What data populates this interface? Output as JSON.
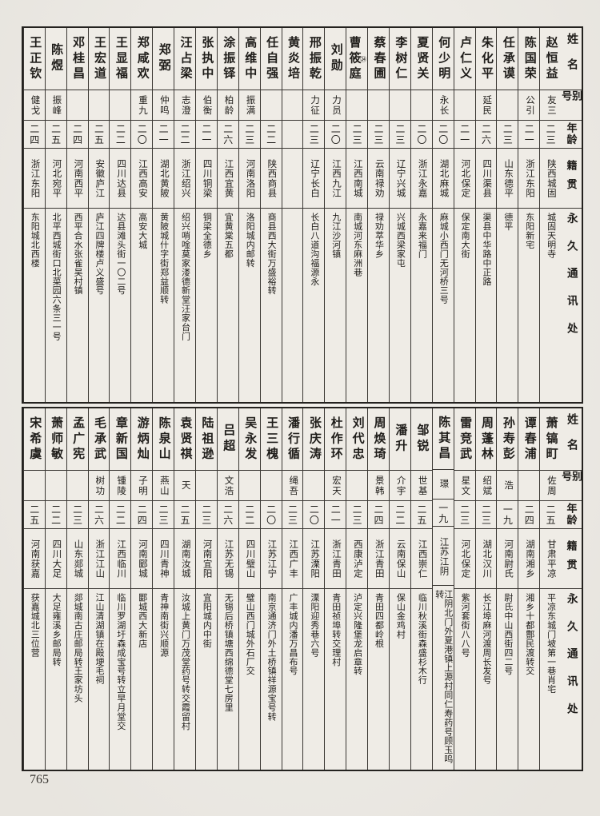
{
  "page": {
    "number": "765"
  },
  "headers": {
    "name": "姓名",
    "alias": "别号",
    "age": "年龄",
    "native": "籍贯",
    "address": "永久通讯处"
  },
  "tables": [
    {
      "entries": [
        {
          "name": "赵恒益",
          "note": "",
          "alias": "友三",
          "age": "二三",
          "native": "陕西城固",
          "address": "城固天明寺"
        },
        {
          "name": "陈国荣",
          "note": "",
          "alias": "公引",
          "age": "二一",
          "native": "浙江东阳",
          "address": "东阳新宅"
        },
        {
          "name": "任承谟",
          "note": "",
          "alias": "",
          "age": "二三",
          "native": "山东德平",
          "address": "德平"
        },
        {
          "name": "朱化平",
          "note": "",
          "alias": "延民",
          "age": "二六",
          "native": "四川渠县",
          "address": "渠县中华路中正路"
        },
        {
          "name": "卢仁义",
          "note": "",
          "alias": "",
          "age": "二一",
          "native": "河北保定",
          "address": "保定南大街"
        },
        {
          "name": "何少明",
          "note": "",
          "alias": "永长",
          "age": "二〇",
          "native": "湖北麻城",
          "address": "麻城小西门无河桥三号"
        },
        {
          "name": "夏贤关",
          "note": "",
          "alias": "",
          "age": "二〇",
          "native": "浙江永嘉",
          "address": "永嘉来福门"
        },
        {
          "name": "李树仁",
          "note": "",
          "alias": "",
          "age": "二三",
          "native": "辽宁兴城",
          "address": "兴城西梁家屯"
        },
        {
          "name": "蔡春圃",
          "note": "",
          "alias": "",
          "age": "二三",
          "native": "云南禄劝",
          "address": "禄劝萃华乡"
        },
        {
          "name": "曹筱庭",
          "note": "㉔",
          "alias": "",
          "age": "二三",
          "native": "江西南城",
          "address": "南城河东麻洲巷"
        },
        {
          "name": "刘勋",
          "note": "",
          "alias": "力员",
          "age": "二〇",
          "native": "江西九江",
          "address": "九江沙河镇"
        },
        {
          "name": "邢振乾",
          "note": "",
          "alias": "力征",
          "age": "二三",
          "native": "辽宁长白",
          "address": "长白八道沟福源永"
        },
        {
          "name": "黄炎培",
          "note": "",
          "alias": "",
          "age": "",
          "native": "",
          "address": ""
        },
        {
          "name": "任自强",
          "note": "",
          "alias": "",
          "age": "二二",
          "native": "陕西商县",
          "address": "商县西大街万盛裕转"
        },
        {
          "name": "高维中",
          "note": "",
          "alias": "振满",
          "age": "二三",
          "native": "河南洛阳",
          "address": "洛阳城内邮转"
        },
        {
          "name": "涂振铎",
          "note": "",
          "alias": "柏龄",
          "age": "二六",
          "native": "江西宜黄",
          "address": "宜黄棠五都"
        },
        {
          "name": "张执中",
          "note": "",
          "alias": "伯衡",
          "age": "二一",
          "native": "四川铜梁",
          "address": "铜梁全德乡"
        },
        {
          "name": "汪占梁",
          "note": "",
          "alias": "志澄",
          "age": "二二",
          "native": "浙江绍兴",
          "address": "绍兴哨唫莫家溇德新堂汪家台门"
        },
        {
          "name": "郑弼",
          "note": "",
          "alias": "仲鸣",
          "age": "二一",
          "native": "湖北黄陂",
          "address": "黄陂城什字街郑益顺转"
        },
        {
          "name": "郑咸欢",
          "note": "",
          "alias": "重九",
          "age": "二〇",
          "native": "江西高安",
          "address": "高安大城"
        },
        {
          "name": "王显福",
          "note": "",
          "alias": "",
          "age": "二二",
          "native": "四川达县",
          "address": "达县滩头街一〇二号"
        },
        {
          "name": "王宏道",
          "note": "",
          "alias": "",
          "age": "二五",
          "native": "安徽庐江",
          "address": "庐江四牌楼卢义盛号"
        },
        {
          "name": "邓桂昌",
          "note": "",
          "alias": "",
          "age": "二四",
          "native": "河南西平",
          "address": "西平合水张雀吴村镇"
        },
        {
          "name": "陈煜",
          "note": "",
          "alias": "振峰",
          "age": "二五",
          "native": "河北宛平",
          "address": "北平西城街口北菜园六条三一号"
        },
        {
          "name": "王正钦",
          "note": "",
          "alias": "健戈",
          "age": "二四",
          "native": "浙江东阳",
          "address": "东阳城北西楼"
        }
      ]
    },
    {
      "entries": [
        {
          "name": "萧镐町",
          "note": "",
          "alias": "佐周",
          "age": "二五",
          "native": "甘肃平凉",
          "address": "平凉东城门坡第一巷肖宅"
        },
        {
          "name": "谭春浦",
          "note": "",
          "alias": "",
          "age": "二四",
          "native": "湖南湘乡",
          "address": "湘乡十都鄷民渡转交"
        },
        {
          "name": "孙寿彭",
          "note": "",
          "alias": "浩",
          "age": "一九",
          "native": "河南尉氏",
          "address": "尉氏中山西街四二号"
        },
        {
          "name": "周蓬林",
          "note": "",
          "alias": "绍斌",
          "age": "二三",
          "native": "湖北汉川",
          "address": "长江埠麻河渡周长发号"
        },
        {
          "name": "雷竞武",
          "note": "",
          "alias": "星文",
          "age": "二三",
          "native": "河北保定",
          "address": "紫河套街八八号"
        },
        {
          "name": "陈其昌",
          "note": "",
          "alias": "璟",
          "age": "一九",
          "native": "江苏江阴",
          "address": "江阴北门外夏港镇上源村同仁寿药号顾玉鸣转"
        },
        {
          "name": "邹锐",
          "note": "",
          "alias": "世基",
          "age": "二五",
          "native": "江西崇仁",
          "address": "临川秋溪街森盛杉木行"
        },
        {
          "name": "潘升",
          "note": "",
          "alias": "介宇",
          "age": "二二",
          "native": "云南保山",
          "address": "保山金鸡村"
        },
        {
          "name": "周焕琦",
          "note": "",
          "alias": "景韩",
          "age": "二四",
          "native": "浙江青田",
          "address": "青田四都岭根"
        },
        {
          "name": "刘代忠",
          "note": "",
          "alias": "",
          "age": "二三",
          "native": "西康泸定",
          "address": "泸定兴隆堡龙启章转"
        },
        {
          "name": "杜作环",
          "note": "",
          "alias": "宏天",
          "age": "二一",
          "native": "浙江青田",
          "address": "青田祯埠转交理村"
        },
        {
          "name": "张庆涛",
          "note": "",
          "alias": "",
          "age": "二〇",
          "native": "江苏溧阳",
          "address": "溧阳迎秀巷六号"
        },
        {
          "name": "潘行循",
          "note": "",
          "alias": "绳吾",
          "age": "二三",
          "native": "江西广丰",
          "address": "广丰城内潘万昌布号"
        },
        {
          "name": "王三槐",
          "note": "",
          "alias": "",
          "age": "二〇",
          "native": "江苏江宁",
          "address": "南京通济门外土桥镇祥源宝号转"
        },
        {
          "name": "吴永发",
          "note": "",
          "alias": "",
          "age": "二二",
          "native": "四川璧山",
          "address": "璧山西门城外石厂交"
        },
        {
          "name": "吕超",
          "note": "",
          "alias": "文浩",
          "age": "二六",
          "native": "江苏无锡",
          "address": "无锡后桥镇塘西绵德堂七房里"
        },
        {
          "name": "陆祖逊",
          "note": "",
          "alias": "",
          "age": "二三",
          "native": "河南宜阳",
          "address": "宜阳城内中街"
        },
        {
          "name": "袁贤祺",
          "note": "",
          "alias": "天",
          "age": "二五",
          "native": "湖南汝城",
          "address": "汝城上黄门万茂堂药号转交霞留村"
        },
        {
          "name": "陈泉山",
          "note": "",
          "alias": "燕山",
          "age": "二三",
          "native": "四川青神",
          "address": "青神南街兴顺源"
        },
        {
          "name": "游炳灿",
          "note": "",
          "alias": "子明",
          "age": "二四",
          "native": "河南郾城",
          "address": "郾城西大新店"
        },
        {
          "name": "章新国",
          "note": "",
          "alias": "锺陵",
          "age": "二二",
          "native": "江西临川",
          "address": "临川罗湖圩森成宝号转立早月堂交"
        },
        {
          "name": "毛承武",
          "note": "",
          "alias": "树功",
          "age": "二六",
          "native": "浙江江山",
          "address": "江山清湖镇在殿埂毛祠"
        },
        {
          "name": "孟广宪",
          "note": "",
          "alias": "",
          "age": "二三",
          "native": "山东郯城",
          "address": "郯城南古庄邮局转王家坊头"
        },
        {
          "name": "萧师敏",
          "note": "",
          "alias": "",
          "age": "二二",
          "native": "四川大足",
          "address": "大足雍溪乡邮局转"
        },
        {
          "name": "宋希虞",
          "note": "",
          "alias": "",
          "age": "二五",
          "native": "河南获嘉",
          "address": "获嘉城北三位营"
        }
      ]
    }
  ]
}
